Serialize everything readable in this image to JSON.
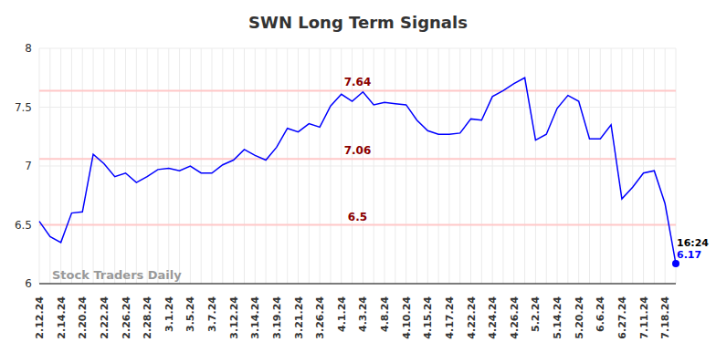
{
  "chart_data": {
    "type": "line",
    "title": "SWN Long Term Signals",
    "categories": [
      "2.12.24",
      null,
      "2.14.24",
      null,
      "2.20.24",
      null,
      "2.22.24",
      null,
      "2.26.24",
      null,
      "2.28.24",
      null,
      "3.1.24",
      null,
      "3.5.24",
      null,
      "3.7.24",
      null,
      "3.12.24",
      null,
      "3.14.24",
      null,
      "3.19.24",
      null,
      "3.21.24",
      null,
      "3.26.24",
      null,
      "4.1.24",
      null,
      "4.3.24",
      null,
      "4.8.24",
      null,
      "4.10.24",
      null,
      "4.15.24",
      null,
      "4.17.24",
      null,
      "4.22.24",
      null,
      "4.24.24",
      null,
      "4.26.24",
      null,
      "5.2.24",
      null,
      "5.14.24",
      null,
      "5.20.24",
      null,
      "6.6.24",
      null,
      "6.27.24",
      null,
      "7.11.24",
      null,
      "7.18.24",
      null
    ],
    "values": [
      6.53,
      6.4,
      6.35,
      6.6,
      6.61,
      7.1,
      7.02,
      6.91,
      6.94,
      6.86,
      6.91,
      6.97,
      6.98,
      6.96,
      7.0,
      6.94,
      6.94,
      7.01,
      7.05,
      7.14,
      7.09,
      7.05,
      7.16,
      7.32,
      7.29,
      7.36,
      7.33,
      7.51,
      7.61,
      7.55,
      7.63,
      7.52,
      7.54,
      7.53,
      7.52,
      7.39,
      7.3,
      7.27,
      7.27,
      7.28,
      7.4,
      7.39,
      7.59,
      7.64,
      7.7,
      7.75,
      7.22,
      7.27,
      7.49,
      7.6,
      7.55,
      7.23,
      7.23,
      7.35,
      6.72,
      6.82,
      6.94,
      6.96,
      6.68,
      6.17
    ],
    "color": "#0000ff",
    "ylim": [
      6,
      8
    ],
    "yticks": [
      6,
      6.5,
      7,
      7.5,
      8
    ],
    "grid": true,
    "reference_lines": [
      6.5,
      7.06,
      7.64
    ],
    "end_marker": {
      "label": "16:24",
      "value": 6.17
    },
    "annotations": [
      "Stock Traders Daily"
    ]
  }
}
